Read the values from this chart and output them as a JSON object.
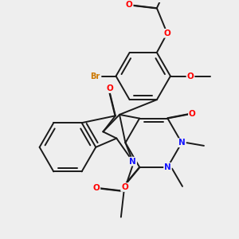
{
  "bg_color": "#eeeeee",
  "bond_color": "#1a1a1a",
  "bond_width": 1.4,
  "dbo": 0.012,
  "atom_colors": {
    "O": "#ff0000",
    "N": "#1414ff",
    "Br": "#cc7700",
    "C": "#1a1a1a"
  },
  "afs": 7.5
}
